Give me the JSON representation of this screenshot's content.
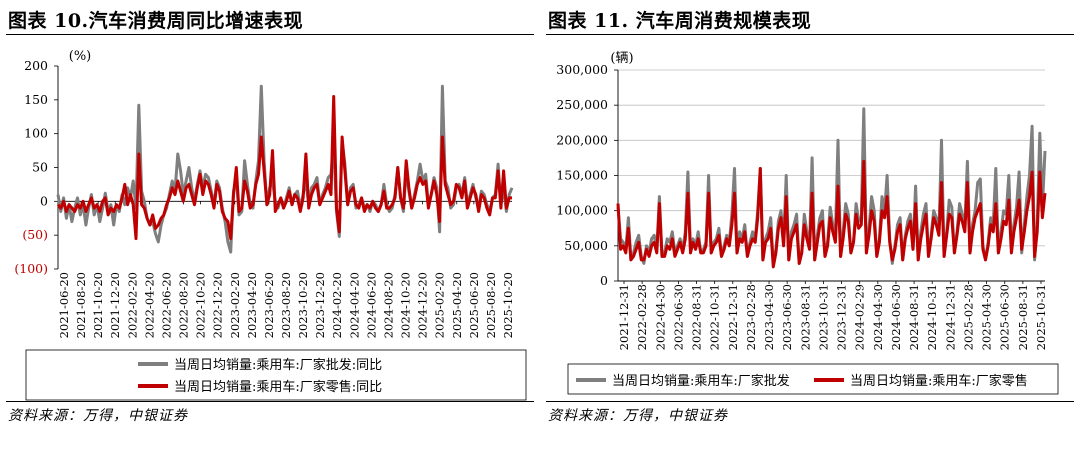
{
  "charts": [
    {
      "title": "图表 10.汽车消费周同比增速表现",
      "source": "资料来源：万得，中银证券",
      "unit": "(%)",
      "y_ticks": [
        "200",
        "150",
        "100",
        "50",
        "0",
        "(50)",
        "(100)"
      ],
      "y_tick_colors": [
        "#000000",
        "#000000",
        "#000000",
        "#000000",
        "#000000",
        "#c00000",
        "#c00000"
      ],
      "x_ticks": [
        "2021-06-20",
        "2021-08-20",
        "2021-10-20",
        "2021-12-20",
        "2022-02-20",
        "2022-04-20",
        "2022-06-20",
        "2022-08-20",
        "2022-10-20",
        "2022-12-20",
        "2023-02-20",
        "2023-04-20",
        "2023-06-20",
        "2023-08-20",
        "2023-10-20",
        "2023-12-20",
        "2024-02-20",
        "2024-04-20",
        "2024-06-20",
        "2024-08-20",
        "2024-10-20",
        "2024-12-20",
        "2025-02-20",
        "2025-04-20",
        "2025-06-20",
        "2025-08-20",
        "2025-10-20"
      ],
      "legend": [
        "当周日均销量:乘用车:厂家批发:同比",
        "当周日均销量:乘用车:厂家零售:同比"
      ],
      "colors": {
        "series_1": "#7f7f7f",
        "series_2": "#c00000"
      },
      "chart_data": {
        "type": "line",
        "ylim": [
          -100,
          200
        ],
        "x_range": [
          "2021-06-20",
          "2025-11-01"
        ],
        "series": [
          {
            "name": "当周日均销量:乘用车:厂家批发:同比",
            "values": [
              10,
              -15,
              5,
              -25,
              -5,
              -30,
              -10,
              5,
              -20,
              -5,
              -35,
              -10,
              10,
              -20,
              -5,
              -30,
              -10,
              12,
              -15,
              -5,
              -35,
              -5,
              -15,
              10,
              -5,
              20,
              5,
              30,
              -10,
              142,
              15,
              0,
              -25,
              -35,
              -30,
              -48,
              -60,
              -35,
              -20,
              -10,
              10,
              30,
              15,
              70,
              45,
              10,
              30,
              50,
              20,
              0,
              25,
              45,
              20,
              40,
              35,
              15,
              -5,
              30,
              20,
              -10,
              -30,
              -60,
              -75,
              15,
              35,
              -20,
              -15,
              60,
              25,
              -5,
              -10,
              30,
              60,
              170,
              60,
              -5,
              20,
              30,
              0,
              -10,
              5,
              -10,
              5,
              20,
              -5,
              10,
              15,
              -10,
              10,
              30,
              -5,
              20,
              25,
              35,
              -5,
              10,
              20,
              35,
              40,
              85,
              -15,
              -52,
              90,
              55,
              -5,
              20,
              25,
              -10,
              -5,
              5,
              -10,
              -5,
              -15,
              0,
              -5,
              -15,
              -5,
              25,
              -5,
              -15,
              -10,
              10,
              50,
              5,
              -15,
              45,
              15,
              -10,
              10,
              30,
              55,
              30,
              40,
              -5,
              10,
              35,
              20,
              -45,
              170,
              30,
              20,
              -10,
              -5,
              20,
              25,
              10,
              35,
              -5,
              10,
              25,
              5,
              -10,
              15,
              10,
              -5,
              -15,
              5,
              10,
              55,
              -5,
              20,
              -15,
              10,
              20
            ]
          },
          {
            "name": "当周日均销量:乘用车:厂家零售:同比",
            "values": [
              -5,
              -10,
              0,
              -15,
              -5,
              -10,
              -15,
              -5,
              -10,
              0,
              -15,
              -5,
              5,
              -10,
              -5,
              -15,
              0,
              5,
              -20,
              -10,
              -15,
              -5,
              -10,
              5,
              25,
              -5,
              10,
              -5,
              -55,
              70,
              -5,
              -10,
              -25,
              -35,
              -20,
              -40,
              -35,
              -25,
              -20,
              -5,
              5,
              20,
              10,
              30,
              15,
              0,
              20,
              25,
              10,
              -5,
              20,
              40,
              10,
              30,
              25,
              10,
              -10,
              25,
              15,
              -15,
              -25,
              -30,
              -55,
              10,
              50,
              -15,
              -10,
              30,
              15,
              -10,
              -5,
              25,
              40,
              95,
              45,
              -5,
              10,
              75,
              -15,
              -5,
              5,
              -10,
              0,
              15,
              -5,
              10,
              5,
              -15,
              5,
              70,
              -10,
              10,
              20,
              25,
              -5,
              5,
              15,
              25,
              10,
              155,
              -10,
              -45,
              95,
              45,
              -5,
              15,
              20,
              -5,
              -10,
              5,
              -15,
              -5,
              -10,
              0,
              -10,
              -15,
              -5,
              15,
              -10,
              -10,
              -5,
              5,
              50,
              5,
              -10,
              60,
              20,
              -10,
              5,
              25,
              35,
              25,
              30,
              -10,
              10,
              30,
              10,
              -30,
              95,
              25,
              10,
              -5,
              0,
              25,
              20,
              5,
              30,
              -10,
              5,
              20,
              10,
              -15,
              10,
              5,
              -10,
              -20,
              5,
              5,
              45,
              -10,
              45,
              -10,
              5,
              5
            ]
          }
        ]
      }
    },
    {
      "title": "图表 11. 汽车周消费规模表现",
      "source": "资料来源：万得，中银证券",
      "unit": "(辆)",
      "y_ticks": [
        "300,000",
        "250,000",
        "200,000",
        "150,000",
        "100,000",
        "50,000",
        "0"
      ],
      "x_ticks": [
        "2021-12-31",
        "2022-02-28",
        "2022-04-30",
        "2022-06-30",
        "2022-08-31",
        "2022-10-31",
        "2022-12-31",
        "2023-02-28",
        "2023-04-30",
        "2023-06-30",
        "2023-08-31",
        "2023-10-31",
        "2023-12-31",
        "2024-02-29",
        "2024-04-30",
        "2024-06-30",
        "2024-08-31",
        "2024-10-31",
        "2024-12-31",
        "2025-02-28",
        "2025-04-30",
        "2025-06-30",
        "2025-08-31",
        "2025-10-31"
      ],
      "legend": [
        "当周日均销量:乘用车:厂家批发",
        "当周日均销量:乘用车:厂家零售"
      ],
      "colors": {
        "series_1": "#7f7f7f",
        "series_2": "#c00000"
      },
      "chart_data": {
        "type": "line",
        "ylim": [
          0,
          300000
        ],
        "x_range": [
          "2021-12-31",
          "2025-11-08"
        ],
        "series": [
          {
            "name": "当周日均销量:乘用车:厂家批发",
            "values": [
              105000,
              60000,
              55000,
              45000,
              90000,
              30000,
              40000,
              55000,
              65000,
              35000,
              25000,
              50000,
              40000,
              60000,
              65000,
              45000,
              120000,
              35000,
              40000,
              60000,
              55000,
              70000,
              40000,
              50000,
              60000,
              45000,
              70000,
              155000,
              45000,
              60000,
              50000,
              70000,
              40000,
              45000,
              55000,
              150000,
              40000,
              55000,
              60000,
              75000,
              35000,
              50000,
              65000,
              55000,
              95000,
              160000,
              40000,
              70000,
              60000,
              80000,
              35000,
              55000,
              70000,
              60000,
              100000,
              160000,
              30000,
              60000,
              70000,
              90000,
              25000,
              45000,
              85000,
              100000,
              55000,
              150000,
              30000,
              70000,
              80000,
              95000,
              25000,
              40000,
              95000,
              70000,
              50000,
              175000,
              30000,
              65000,
              90000,
              100000,
              35000,
              55000,
              105000,
              80000,
              65000,
              200000,
              35000,
              70000,
              110000,
              95000,
              40000,
              55000,
              110000,
              85000,
              90000,
              245000,
              40000,
              75000,
              120000,
              100000,
              35000,
              60000,
              120000,
              100000,
              150000,
              60000,
              25000,
              50000,
              80000,
              90000,
              30000,
              65000,
              85000,
              95000,
              45000,
              135000,
              30000,
              70000,
              95000,
              110000,
              35000,
              65000,
              100000,
              90000,
              70000,
              200000,
              35000,
              70000,
              115000,
              105000,
              40000,
              70000,
              110000,
              95000,
              80000,
              170000,
              40000,
              80000,
              100000,
              140000,
              145000,
              50000,
              30000,
              55000,
              90000,
              80000,
              160000,
              40000,
              70000,
              100000,
              95000,
              150000,
              45000,
              80000,
              105000,
              155000,
              40000,
              80000,
              120000,
              150000,
              220000,
              30000,
              80000,
              210000,
              105000,
              185000
            ]
          },
          {
            "name": "当周日均销量:乘用车:厂家零售",
            "values": [
              110000,
              45000,
              50000,
              40000,
              75000,
              30000,
              35000,
              45000,
              55000,
              30000,
              30000,
              45000,
              35000,
              50000,
              55000,
              40000,
              110000,
              35000,
              35000,
              50000,
              45000,
              60000,
              35000,
              45000,
              55000,
              40000,
              60000,
              125000,
              40000,
              55000,
              45000,
              60000,
              40000,
              40000,
              50000,
              125000,
              40000,
              50000,
              55000,
              65000,
              35000,
              45000,
              60000,
              50000,
              80000,
              125000,
              40000,
              60000,
              55000,
              70000,
              35000,
              50000,
              60000,
              55000,
              90000,
              160000,
              30000,
              55000,
              60000,
              75000,
              20000,
              40000,
              75000,
              90000,
              50000,
              120000,
              30000,
              60000,
              70000,
              80000,
              25000,
              40000,
              80000,
              60000,
              45000,
              125000,
              30000,
              55000,
              80000,
              85000,
              35000,
              50000,
              90000,
              70000,
              55000,
              135000,
              35000,
              60000,
              95000,
              85000,
              40000,
              55000,
              95000,
              75000,
              80000,
              170000,
              40000,
              65000,
              100000,
              85000,
              35000,
              55000,
              100000,
              90000,
              120000,
              55000,
              30000,
              45000,
              70000,
              80000,
              30000,
              60000,
              75000,
              85000,
              45000,
              110000,
              30000,
              60000,
              80000,
              95000,
              35000,
              60000,
              90000,
              80000,
              65000,
              140000,
              35000,
              65000,
              95000,
              90000,
              40000,
              65000,
              95000,
              85000,
              70000,
              140000,
              40000,
              70000,
              90000,
              100000,
              110000,
              45000,
              30000,
              50000,
              80000,
              70000,
              110000,
              40000,
              60000,
              85000,
              80000,
              115000,
              40000,
              70000,
              90000,
              115000,
              45000,
              70000,
              100000,
              120000,
              155000,
              35000,
              70000,
              155000,
              90000,
              125000
            ]
          }
        ]
      }
    }
  ]
}
